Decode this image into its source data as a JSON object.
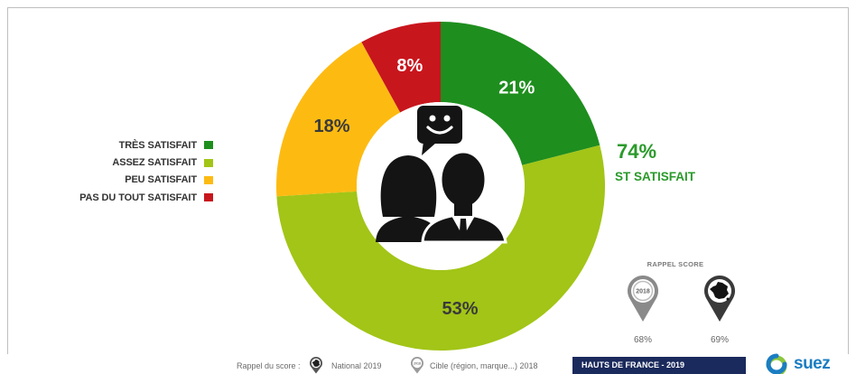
{
  "chart_data": {
    "type": "pie",
    "variant": "donut",
    "categories": [
      "TRÈS SATISFAIT",
      "ASSEZ SATISFAIT",
      "PEU SATISFAIT",
      "PAS DU TOUT SATISFAIT"
    ],
    "values": [
      21,
      53,
      18,
      8
    ],
    "value_labels": [
      "21%",
      "53%",
      "18%",
      "8%"
    ],
    "colors": [
      "#1e8e1e",
      "#a2c517",
      "#fdbb12",
      "#c8161d"
    ],
    "label_colors": [
      "#ffffff",
      "#3a3a3a",
      "#3a3a3a",
      "#ffffff"
    ],
    "legend": "left",
    "annotation": {
      "value": "74%",
      "label": "ST SATISFAIT"
    }
  },
  "center_icon": "customers-speech-smiley-icon",
  "rappel_score": {
    "title": "RAPPEL SCORE",
    "items": [
      {
        "icon": "pin-2018-icon",
        "pin_text": "2018",
        "value": "68%"
      },
      {
        "icon": "pin-france-map-icon",
        "value": "69%"
      }
    ]
  },
  "footer": {
    "rappel_label": "Rappel du score :",
    "national_icon": "pin-france-map-icon",
    "national_label": "National 2019",
    "cible_icon": "pin-2018-icon",
    "cible_pin_text": "2018",
    "cible_label": "Cible (région, marque...) 2018",
    "region_badge": "HAUTS DE FRANCE - 2019",
    "logo_text": "suez"
  },
  "colors": {
    "accent_green": "#2a9a2a",
    "navy": "#1b2a5c",
    "brand_blue": "#1b7dc2",
    "brand_green": "#8cc63e",
    "pin_gray": "#8a8a8a",
    "pin_dark": "#3a3a3a",
    "icon_black": "#141414"
  }
}
